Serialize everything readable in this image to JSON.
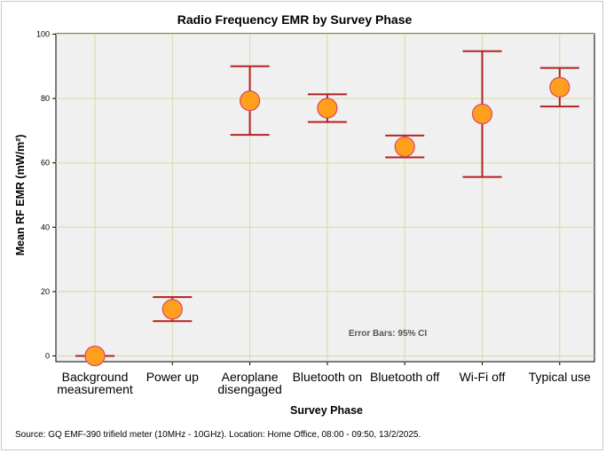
{
  "chart_data": {
    "type": "scatter",
    "title": "Radio Frequency EMR by Survey Phase",
    "xlabel": "Survey Phase",
    "ylabel": "Mean RF EMR (mW/m²)",
    "ylim": [
      0,
      100
    ],
    "yticks": [
      "0",
      "20",
      "40",
      "60",
      "80",
      "100"
    ],
    "ytick_values": [
      0,
      20,
      40,
      60,
      80,
      100
    ],
    "grid": true,
    "categories": [
      [
        "Background",
        "measurement"
      ],
      [
        "Power up"
      ],
      [
        "Aeroplane",
        "disengaged"
      ],
      [
        "Bluetooth on"
      ],
      [
        "Bluetooth off"
      ],
      [
        "Wi-Fi off"
      ],
      [
        "Typical use"
      ]
    ],
    "series": [
      {
        "name": "Mean RF EMR",
        "values": [
          0,
          14.5,
          79.3,
          77,
          65,
          75.2,
          83.5
        ],
        "ci_low": [
          0,
          10.8,
          68.7,
          72.7,
          61.7,
          55.6,
          77.5
        ],
        "ci_high": [
          0,
          18.3,
          90,
          81.3,
          68.5,
          94.7,
          89.5
        ]
      }
    ],
    "annotation": "Error Bars: 95% CI",
    "colors": {
      "marker_fill": "#ff9f1c",
      "marker_edge": "#d94a6a",
      "errorbar": "#b22222",
      "plot_bg": "#f0f0f0",
      "grid": "#d9d9a6"
    }
  },
  "footer": {
    "source": "Source: GQ EMF-390 trifield meter (10MHz - 10GHz). Location: Home Office, 08:00 - 09:50, 13/2/2025."
  }
}
